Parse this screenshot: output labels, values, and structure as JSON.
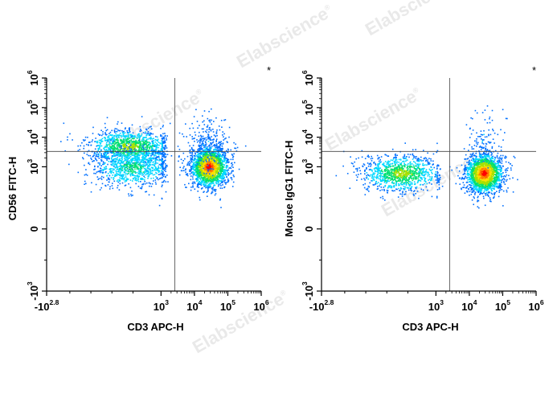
{
  "watermark": {
    "text": "Elabscience",
    "symbol": "®"
  },
  "asterisk": "*",
  "chart_data": [
    {
      "type": "scatter",
      "style": "density dot plot (rainbow colour scale: blue = low density, red = high density)",
      "xlabel": "CD3 APC-H",
      "ylabel": "CD56 FITC-H",
      "x_scale": "biexponential",
      "y_scale": "biexponential",
      "xlim": [
        -631,
        1000000
      ],
      "ylim": [
        -1000,
        1000000
      ],
      "x_ticks": [
        {
          "value": -631,
          "base": "-10",
          "exp": "2.8"
        },
        {
          "value": 1000,
          "base": "10",
          "exp": "3"
        },
        {
          "value": 10000,
          "base": "10",
          "exp": "4"
        },
        {
          "value": 100000,
          "base": "10",
          "exp": "5"
        },
        {
          "value": 1000000,
          "base": "10",
          "exp": "6"
        }
      ],
      "y_ticks": [
        {
          "value": -1000,
          "base": "-10",
          "exp": "3"
        },
        {
          "value": 0,
          "base": "0",
          "exp": ""
        },
        {
          "value": 1000,
          "base": "10",
          "exp": "3"
        },
        {
          "value": 10000,
          "base": "10",
          "exp": "4"
        },
        {
          "value": 100000,
          "base": "10",
          "exp": "5"
        },
        {
          "value": 1000000,
          "base": "10",
          "exp": "6"
        }
      ],
      "gate": {
        "x": 2600,
        "y": 3300
      },
      "populations": [
        {
          "x_center": 550,
          "y_center": 5000,
          "x_spread": 300,
          "y_spread": 0.3,
          "count": 1200,
          "peak": "green"
        },
        {
          "x_center": 600,
          "y_center": 1000,
          "x_spread": 300,
          "y_spread": 0.3,
          "count": 900,
          "peak": "cyan"
        },
        {
          "x_center": 27000,
          "y_center": 1000,
          "x_spread": 0.27,
          "y_spread": 0.28,
          "count": 2000,
          "peak": "red"
        },
        {
          "x_center": 25000,
          "y_center": 6000,
          "x_spread": 0.35,
          "y_spread": 0.45,
          "count": 250,
          "peak": "blue"
        }
      ]
    },
    {
      "type": "scatter",
      "style": "density dot plot (rainbow colour scale: blue = low density, red = high density)",
      "xlabel": "CD3 APC-H",
      "ylabel": "Mouse IgG1 FITC-H",
      "x_scale": "biexponential",
      "y_scale": "biexponential",
      "xlim": [
        -631,
        1000000
      ],
      "ylim": [
        -1000,
        1000000
      ],
      "x_ticks": [
        {
          "value": -631,
          "base": "-10",
          "exp": "2.8"
        },
        {
          "value": 1000,
          "base": "10",
          "exp": "3"
        },
        {
          "value": 10000,
          "base": "10",
          "exp": "4"
        },
        {
          "value": 100000,
          "base": "10",
          "exp": "5"
        },
        {
          "value": 1000000,
          "base": "10",
          "exp": "6"
        }
      ],
      "y_ticks": [
        {
          "value": -1000,
          "base": "-10",
          "exp": "3"
        },
        {
          "value": 0,
          "base": "0",
          "exp": ""
        },
        {
          "value": 1000,
          "base": "10",
          "exp": "3"
        },
        {
          "value": 10000,
          "base": "10",
          "exp": "4"
        },
        {
          "value": 100000,
          "base": "10",
          "exp": "5"
        },
        {
          "value": 1000000,
          "base": "10",
          "exp": "6"
        }
      ],
      "gate": {
        "x": 2600,
        "y": 3300
      },
      "populations": [
        {
          "x_center": 500,
          "y_center": 900,
          "x_spread": 280,
          "y_spread": 0.26,
          "count": 1100,
          "peak": "green"
        },
        {
          "x_center": 27000,
          "y_center": 900,
          "x_spread": 0.27,
          "y_spread": 0.27,
          "count": 2000,
          "peak": "red"
        },
        {
          "x_center": 26000,
          "y_center": 8000,
          "x_spread": 0.3,
          "y_spread": 0.55,
          "count": 90,
          "peak": "blue"
        }
      ]
    }
  ]
}
